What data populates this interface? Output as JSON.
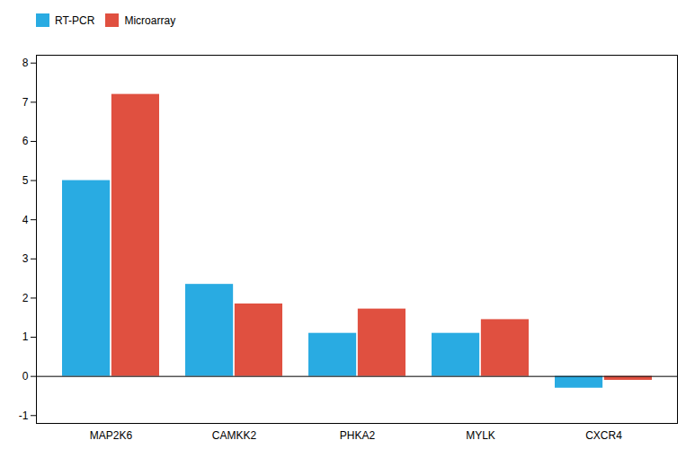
{
  "chart_data": {
    "type": "bar",
    "categories": [
      "MAP2K6",
      "CAMKK2",
      "PHKA2",
      "MYLK",
      "CXCR4"
    ],
    "series": [
      {
        "name": "RT-PCR",
        "color": "#29ABE2",
        "values": [
          5.0,
          2.35,
          1.1,
          1.1,
          -0.3
        ]
      },
      {
        "name": "Microarray",
        "color": "#E05040",
        "values": [
          7.2,
          1.85,
          1.72,
          1.45,
          -0.1
        ]
      }
    ],
    "ylim": [
      -1.2,
      8.2
    ],
    "yticks": [
      -1,
      0,
      1,
      2,
      3,
      4,
      5,
      6,
      7,
      8
    ],
    "grid": false,
    "legend": "upper left"
  }
}
